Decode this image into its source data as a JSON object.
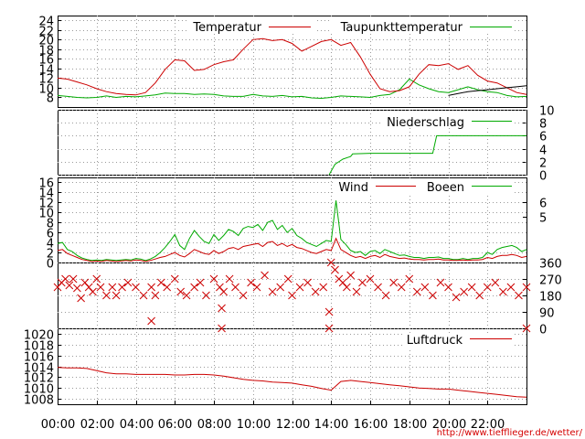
{
  "chart_data": [
    {
      "type": "line",
      "panel": "temperature",
      "x_unit": "time of day (hours)",
      "x": [
        0,
        0.5,
        1,
        1.5,
        2,
        2.5,
        3,
        3.5,
        4,
        4.5,
        5,
        5.5,
        6,
        6.5,
        7,
        7.5,
        8,
        8.5,
        9,
        9.5,
        10,
        10.5,
        11,
        11.5,
        12,
        12.5,
        13,
        13.5,
        14,
        14.5,
        15,
        15.5,
        16,
        16.5,
        17,
        17.5,
        18,
        18.5,
        19,
        19.5,
        20,
        20.5,
        21,
        21.5,
        22,
        22.5,
        23,
        23.5,
        24
      ],
      "ylim": [
        6,
        25
      ],
      "yticks": [
        "8",
        "10",
        "12",
        "14",
        "16",
        "18",
        "20",
        "22",
        "24"
      ],
      "grid": true,
      "legend_position": "top",
      "series": [
        {
          "name": "Temperatur",
          "color": "#cc0000",
          "values": [
            12.0,
            11.8,
            11.2,
            10.6,
            9.8,
            9.2,
            8.8,
            8.6,
            8.5,
            9.0,
            11.0,
            13.8,
            15.8,
            15.6,
            13.6,
            13.8,
            14.8,
            15.4,
            15.8,
            18.0,
            20.0,
            20.2,
            19.8,
            20.0,
            19.2,
            17.6,
            18.6,
            19.6,
            20.0,
            18.8,
            19.4,
            16.4,
            12.8,
            9.8,
            9.2,
            9.4,
            10.2,
            12.8,
            14.8,
            14.6,
            15.0,
            13.8,
            14.6,
            12.6,
            11.4,
            11.0,
            10.0,
            9.0,
            8.6
          ]
        },
        {
          "name": "Taupunkttemperatur",
          "color": "#00aa00",
          "values": [
            8.4,
            8.2,
            8.0,
            7.9,
            8.0,
            8.3,
            8.0,
            8.2,
            8.1,
            8.3,
            8.5,
            8.9,
            8.8,
            8.8,
            8.6,
            8.7,
            8.6,
            8.3,
            8.2,
            8.2,
            8.6,
            8.3,
            8.2,
            8.4,
            8.1,
            8.2,
            7.9,
            7.8,
            8.0,
            8.3,
            8.2,
            8.1,
            8.0,
            8.4,
            8.6,
            9.6,
            11.8,
            10.6,
            9.8,
            9.2,
            9.0,
            9.6,
            10.2,
            9.6,
            9.2,
            9.0,
            8.4,
            8.1,
            8.2
          ]
        }
      ],
      "extra_series": {
        "color": "#000000",
        "values": [
          null,
          null,
          null,
          null,
          null,
          null,
          null,
          null,
          null,
          null,
          null,
          null,
          null,
          null,
          null,
          null,
          null,
          null,
          null,
          null,
          null,
          null,
          null,
          null,
          null,
          null,
          null,
          null,
          null,
          null,
          null,
          null,
          null,
          null,
          null,
          null,
          null,
          null,
          null,
          null,
          8.4,
          8.8,
          9.2,
          9.4,
          9.6,
          9.8,
          10.0,
          10.2,
          10.4
        ]
      }
    },
    {
      "type": "line",
      "panel": "precipitation",
      "x": [
        0,
        2,
        4,
        6,
        8,
        10,
        12,
        13.9,
        14.2,
        14.6,
        15.0,
        15.1,
        16,
        18,
        19.2,
        19.4,
        20,
        22,
        24
      ],
      "ylim": [
        0,
        10
      ],
      "yticks": [
        "0",
        "2",
        "4",
        "6",
        "8",
        "10"
      ],
      "grid": true,
      "legend_position": "top-right",
      "series": [
        {
          "name": "Niederschlag",
          "color": "#00aa00",
          "values": [
            null,
            null,
            null,
            null,
            null,
            null,
            null,
            0,
            1.6,
            2.4,
            2.8,
            3.2,
            3.3,
            3.3,
            3.3,
            6.0,
            6.0,
            6.0,
            6.0
          ]
        }
      ]
    },
    {
      "type": "line",
      "panel": "wind",
      "x_step_hours": 0.25,
      "ylim": [
        0,
        17
      ],
      "yticks": [
        "0",
        "2",
        "4",
        "6",
        "8",
        "10",
        "12",
        "14",
        "16"
      ],
      "right_yticks": [
        "5",
        "6"
      ],
      "grid": true,
      "legend_position": "top",
      "series": [
        {
          "name": "Wind",
          "color": "#cc0000",
          "values": [
            2.4,
            2.6,
            1.8,
            1.4,
            1.0,
            0.6,
            0.4,
            0.2,
            0.3,
            0.2,
            0.4,
            0.3,
            0.2,
            0.3,
            0.4,
            0.3,
            0.5,
            0.4,
            0.2,
            0.4,
            0.7,
            1.0,
            1.2,
            1.6,
            2.0,
            1.4,
            1.1,
            1.8,
            2.6,
            2.2,
            1.8,
            1.6,
            2.4,
            1.8,
            2.2,
            2.8,
            3.0,
            2.6,
            3.2,
            3.4,
            3.6,
            3.8,
            3.2,
            4.0,
            4.2,
            3.4,
            3.8,
            3.2,
            3.6,
            3.0,
            2.8,
            2.4,
            2.0,
            1.8,
            2.2,
            2.6,
            2.4,
            4.8,
            2.6,
            2.0,
            1.4,
            1.0,
            1.2,
            0.8,
            1.2,
            1.4,
            1.0,
            1.6,
            1.2,
            1.0,
            0.8,
            0.9,
            0.7,
            0.6,
            0.6,
            0.5,
            0.6,
            0.6,
            0.7,
            0.5,
            0.5,
            0.4,
            0.4,
            0.5,
            0.4,
            0.5,
            0.5,
            0.6,
            1.0,
            0.8,
            1.2,
            1.4,
            1.4,
            1.6,
            1.4,
            1.0,
            1.2
          ]
        },
        {
          "name": "Boeen",
          "color": "#00aa00",
          "values": [
            3.8,
            4.0,
            2.6,
            2.2,
            1.4,
            0.9,
            0.6,
            0.4,
            0.5,
            0.4,
            0.6,
            0.5,
            0.4,
            0.5,
            0.6,
            0.5,
            0.8,
            0.7,
            0.4,
            0.7,
            1.2,
            2.0,
            3.0,
            4.2,
            5.6,
            3.4,
            2.6,
            4.8,
            6.4,
            5.2,
            4.2,
            3.8,
            5.6,
            4.4,
            5.4,
            6.6,
            6.2,
            5.4,
            6.8,
            7.2,
            7.0,
            7.6,
            6.4,
            8.0,
            8.4,
            6.6,
            7.4,
            6.0,
            6.8,
            5.4,
            4.8,
            4.0,
            3.6,
            3.2,
            3.8,
            4.4,
            4.2,
            12.4,
            4.6,
            3.6,
            2.4,
            2.0,
            2.2,
            1.4,
            2.2,
            2.4,
            1.8,
            2.6,
            2.2,
            1.8,
            1.4,
            1.5,
            1.2,
            1.0,
            1.0,
            0.8,
            1.0,
            1.0,
            1.1,
            0.8,
            0.8,
            0.6,
            0.6,
            0.8,
            0.6,
            0.8,
            0.8,
            1.0,
            2.0,
            1.6,
            2.6,
            3.0,
            3.2,
            3.4,
            3.0,
            2.2,
            2.6
          ]
        }
      ]
    },
    {
      "type": "scatter",
      "panel": "wind-direction",
      "ylim": [
        0,
        360
      ],
      "right_yticks": [
        "0",
        "90",
        "180",
        "270",
        "360"
      ],
      "grid": true,
      "marker": "x",
      "color": "#cc0000",
      "x": [
        0.0,
        0.2,
        0.4,
        0.6,
        0.8,
        1.0,
        1.2,
        1.4,
        1.6,
        1.8,
        2.0,
        2.2,
        2.5,
        2.8,
        3.0,
        3.3,
        3.6,
        4.0,
        4.4,
        4.8,
        5.0,
        5.3,
        5.6,
        6.0,
        6.3,
        6.6,
        7.0,
        7.3,
        7.6,
        8.0,
        8.3,
        8.4,
        8.5,
        8.8,
        9.1,
        9.5,
        9.9,
        10.2,
        10.6,
        11.0,
        11.4,
        11.8,
        12.0,
        12.4,
        12.8,
        13.2,
        13.6,
        13.9,
        14.0,
        14.2,
        14.4,
        14.6,
        14.8,
        15.0,
        15.3,
        15.6,
        16.0,
        16.4,
        16.8,
        17.2,
        17.6,
        18.0,
        18.4,
        18.8,
        19.2,
        19.6,
        20.0,
        20.4,
        20.8,
        21.2,
        21.6,
        22.0,
        22.4,
        22.8,
        23.2,
        23.6,
        24.0,
        4.8,
        8.4,
        13.9,
        24.0
      ],
      "values": [
        225,
        250,
        270,
        235,
        270,
        220,
        165,
        250,
        225,
        200,
        270,
        225,
        180,
        225,
        180,
        225,
        250,
        225,
        180,
        225,
        180,
        250,
        225,
        270,
        200,
        180,
        225,
        250,
        180,
        270,
        225,
        110,
        200,
        270,
        225,
        180,
        250,
        225,
        290,
        200,
        225,
        270,
        180,
        225,
        250,
        200,
        225,
        90,
        360,
        320,
        270,
        250,
        225,
        290,
        200,
        250,
        270,
        225,
        180,
        250,
        225,
        270,
        200,
        225,
        180,
        250,
        225,
        170,
        200,
        225,
        180,
        225,
        250,
        200,
        225,
        180,
        225,
        40,
        0,
        0,
        0
      ]
    },
    {
      "type": "line",
      "panel": "pressure",
      "x": [
        0,
        0.5,
        1,
        1.5,
        2,
        2.5,
        3,
        3.5,
        4,
        4.5,
        5,
        5.5,
        6,
        6.5,
        7,
        7.5,
        8,
        8.5,
        9,
        9.5,
        10,
        10.5,
        11,
        11.5,
        12,
        12.5,
        13,
        13.5,
        14,
        14.5,
        15,
        15.5,
        16,
        16.5,
        17,
        17.5,
        18,
        18.5,
        19,
        19.5,
        20,
        20.5,
        21,
        21.5,
        22,
        22.5,
        23,
        23.5,
        24
      ],
      "ylim": [
        1007,
        1021
      ],
      "yticks": [
        "1008",
        "1010",
        "1012",
        "1014",
        "1016",
        "1018",
        "1020"
      ],
      "grid": true,
      "legend_position": "top-right",
      "series": [
        {
          "name": "Luftdruck",
          "color": "#cc0000",
          "values": [
            1013.8,
            1013.7,
            1013.7,
            1013.6,
            1013.2,
            1012.8,
            1012.6,
            1012.6,
            1012.5,
            1012.5,
            1012.5,
            1012.5,
            1012.4,
            1012.4,
            1012.5,
            1012.5,
            1012.4,
            1012.2,
            1011.9,
            1011.6,
            1011.4,
            1011.3,
            1011.1,
            1011.0,
            1010.9,
            1010.6,
            1010.3,
            1009.9,
            1009.6,
            1011.2,
            1011.4,
            1011.2,
            1011.0,
            1010.8,
            1010.6,
            1010.4,
            1010.2,
            1010.0,
            1009.9,
            1009.8,
            1009.8,
            1009.6,
            1009.4,
            1009.2,
            1009.0,
            1008.8,
            1008.6,
            1008.4,
            1008.3
          ]
        }
      ]
    }
  ],
  "x_axis": {
    "range": [
      0,
      24
    ],
    "tick_labels": [
      "00:00",
      "02:00",
      "04:00",
      "06:00",
      "08:00",
      "10:00",
      "12:00",
      "14:00",
      "16:00",
      "18:00",
      "20:00",
      "22:00"
    ]
  },
  "url": "http://www.tiefflieger.de/wetter/"
}
